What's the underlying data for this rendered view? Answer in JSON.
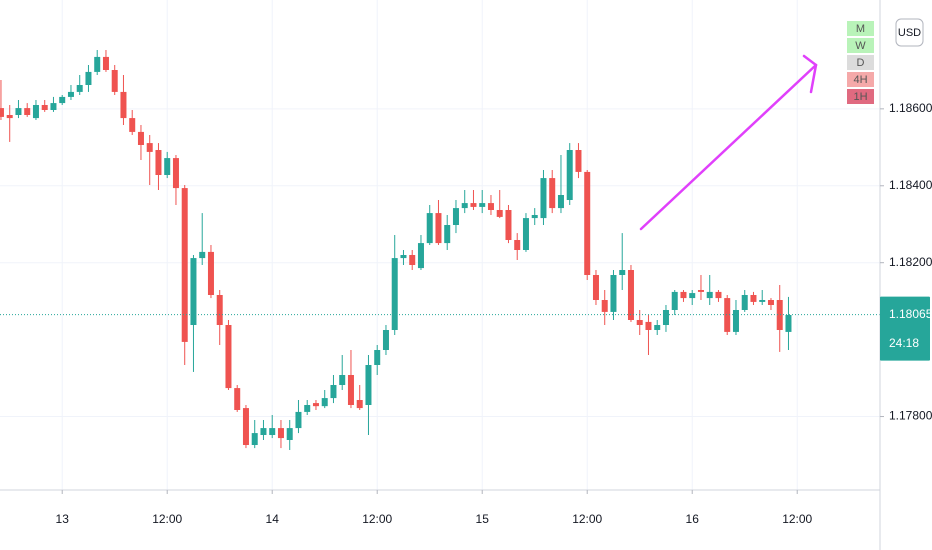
{
  "chart_data": {
    "type": "candlestick",
    "currency": "USD",
    "up_color": "#26a69a",
    "down_color": "#ef5350",
    "grid": true,
    "x": [
      0,
      1,
      2,
      3,
      4,
      5,
      6,
      7,
      8,
      9,
      10,
      11,
      12,
      13,
      14,
      15,
      16,
      17,
      18,
      19,
      20,
      21,
      22,
      23,
      24,
      25,
      26,
      27,
      28,
      29,
      30,
      31,
      32,
      33,
      34,
      35,
      36,
      37,
      38,
      39,
      40,
      41,
      42,
      43,
      44,
      45,
      46,
      47,
      48,
      49,
      50,
      51,
      52,
      53,
      54,
      55,
      56,
      57,
      58,
      59,
      60,
      61,
      62,
      63,
      64,
      65,
      66,
      67,
      68,
      69,
      70,
      71,
      72,
      73,
      74,
      75,
      76,
      77,
      78,
      79,
      80,
      81,
      82,
      83,
      84,
      85,
      86,
      87,
      88,
      89,
      90
    ],
    "open": [
      1.18602,
      1.18584,
      1.18584,
      1.18602,
      1.18576,
      1.1861,
      1.18597,
      1.18615,
      1.18631,
      1.18644,
      1.18662,
      1.18696,
      1.18735,
      1.18701,
      1.18644,
      1.18576,
      1.1854,
      1.18511,
      1.18493,
      1.18428,
      1.18472,
      1.18394,
      1.18038,
      1.18212,
      1.18228,
      1.18116,
      1.18038,
      1.17874,
      1.17822,
      1.17726,
      1.17752,
      1.17752,
      1.1777,
      1.17739,
      1.1777,
      1.17812,
      1.17835,
      1.17827,
      1.17848,
      1.17882,
      1.17908,
      1.17843,
      1.1783,
      1.17934,
      1.17973,
      1.18025,
      1.18212,
      1.1822,
      1.18186,
      1.18251,
      1.18329,
      1.18251,
      1.18298,
      1.18342,
      1.18355,
      1.18345,
      1.18355,
      1.18337,
      1.18337,
      1.18259,
      1.18233,
      1.18316,
      1.18316,
      1.1842,
      1.18342,
      1.18363,
      1.18493,
      1.18436,
      1.18168,
      1.18103,
      1.18072,
      1.18168,
      1.18181,
      1.18051,
      1.18046,
      1.18025,
      1.18038,
      1.18077,
      1.18124,
      1.18108,
      1.18129,
      1.18108,
      1.18124,
      1.18108,
      1.1802,
      1.18077,
      1.18116,
      1.18098,
      1.18103,
      1.18103,
      1.1802
    ],
    "high": [
      1.18675,
      1.1861,
      1.18623,
      1.18615,
      1.18623,
      1.18623,
      1.18631,
      1.18636,
      1.18662,
      1.18688,
      1.18714,
      1.18753,
      1.18753,
      1.18714,
      1.18688,
      1.18597,
      1.18558,
      1.18532,
      1.18511,
      1.18488,
      1.1848,
      1.18402,
      1.1822,
      1.18329,
      1.18246,
      1.18129,
      1.18051,
      1.17882,
      1.1783,
      1.17791,
      1.17791,
      1.17804,
      1.17791,
      1.17791,
      1.17843,
      1.17843,
      1.17843,
      1.17869,
      1.17908,
      1.1796,
      1.17973,
      1.17882,
      1.1796,
      1.17986,
      1.18038,
      1.18272,
      1.18233,
      1.18233,
      1.18272,
      1.1835,
      1.18363,
      1.18324,
      1.18363,
      1.18389,
      1.18389,
      1.18389,
      1.18376,
      1.18389,
      1.1835,
      1.18277,
      1.18329,
      1.18342,
      1.18441,
      1.18441,
      1.1848,
      1.18511,
      1.18511,
      1.18441,
      1.18181,
      1.18129,
      1.18181,
      1.18277,
      1.18194,
      1.18077,
      1.18064,
      1.18051,
      1.1809,
      1.18129,
      1.18129,
      1.18129,
      1.18168,
      1.18168,
      1.18129,
      1.18116,
      1.18103,
      1.18129,
      1.18124,
      1.18129,
      1.18108,
      1.18142,
      1.18111
    ],
    "low": [
      1.18571,
      1.18514,
      1.18576,
      1.18579,
      1.18571,
      1.18592,
      1.18592,
      1.1861,
      1.18623,
      1.18636,
      1.18644,
      1.18688,
      1.18696,
      1.18636,
      1.18558,
      1.18532,
      1.18467,
      1.18402,
      1.18389,
      1.1842,
      1.1835,
      1.17934,
      1.17916,
      1.18194,
      1.18108,
      1.17986,
      1.17869,
      1.17812,
      1.17718,
      1.17718,
      1.17739,
      1.17744,
      1.17718,
      1.17713,
      1.17757,
      1.17804,
      1.17817,
      1.17822,
      1.17835,
      1.17869,
      1.17822,
      1.17817,
      1.17752,
      1.17908,
      1.1796,
      1.18012,
      1.18194,
      1.18181,
      1.18181,
      1.18246,
      1.18246,
      1.18233,
      1.18277,
      1.18329,
      1.18337,
      1.18329,
      1.18324,
      1.18316,
      1.18251,
      1.18207,
      1.18228,
      1.18298,
      1.18298,
      1.18329,
      1.18329,
      1.1835,
      1.1842,
      1.18155,
      1.1809,
      1.18038,
      1.18051,
      1.18129,
      1.18046,
      1.18012,
      1.1796,
      1.18012,
      1.1802,
      1.18064,
      1.18098,
      1.1809,
      1.18103,
      1.1809,
      1.18098,
      1.18012,
      1.18012,
      1.18072,
      1.1809,
      1.1809,
      1.18077,
      1.17968,
      1.17973
    ],
    "close": [
      1.18579,
      1.18576,
      1.18602,
      1.18584,
      1.1861,
      1.18597,
      1.18615,
      1.18631,
      1.18644,
      1.18662,
      1.18696,
      1.18735,
      1.18701,
      1.18644,
      1.18576,
      1.1854,
      1.18506,
      1.18488,
      1.18428,
      1.18472,
      1.18394,
      1.17994,
      1.18212,
      1.18228,
      1.18116,
      1.18038,
      1.17874,
      1.17817,
      1.17726,
      1.17757,
      1.1777,
      1.1777,
      1.17744,
      1.1777,
      1.17812,
      1.1783,
      1.17827,
      1.17848,
      1.17882,
      1.17908,
      1.1783,
      1.17822,
      1.17934,
      1.17973,
      1.18025,
      1.18212,
      1.1822,
      1.18194,
      1.18251,
      1.18329,
      1.18251,
      1.18298,
      1.18342,
      1.18355,
      1.18345,
      1.18355,
      1.18337,
      1.18319,
      1.18259,
      1.18233,
      1.18316,
      1.18324,
      1.1842,
      1.18342,
      1.18376,
      1.18493,
      1.18436,
      1.18168,
      1.18103,
      1.18072,
      1.18168,
      1.18181,
      1.18051,
      1.18038,
      1.18025,
      1.18038,
      1.18077,
      1.18124,
      1.18108,
      1.18121,
      1.18124,
      1.18124,
      1.18108,
      1.1802,
      1.18077,
      1.18116,
      1.18098,
      1.18103,
      1.1809,
      1.18025,
      1.18064
    ],
    "xlim": [
      -0.11,
      100.46
    ],
    "ylim": [
      1.17609,
      1.18883
    ],
    "xticks": [
      {
        "value": 7,
        "label": "13"
      },
      {
        "value": 19,
        "label": "12:00"
      },
      {
        "value": 31,
        "label": "14"
      },
      {
        "value": 43,
        "label": "12:00"
      },
      {
        "value": 55,
        "label": "15"
      },
      {
        "value": 67,
        "label": "12:00"
      },
      {
        "value": 79,
        "label": "16"
      },
      {
        "value": 91,
        "label": "12:00"
      }
    ],
    "yticks": [
      {
        "value": 1.186,
        "label": "1.18600"
      },
      {
        "value": 1.184,
        "label": "1.18400"
      },
      {
        "value": 1.182,
        "label": "1.18200"
      },
      {
        "value": 1.178,
        "label": "1.17800"
      }
    ],
    "last_price": {
      "value": 1.18065,
      "label": "1.18065"
    },
    "countdown": "24:18",
    "timeframes": [
      {
        "label": "M",
        "color": "#b9f3b9"
      },
      {
        "label": "W",
        "color": "#b9f3b9"
      },
      {
        "label": "D",
        "color": "#dcdcdc"
      },
      {
        "label": "4H",
        "color": "#f5a9a9"
      },
      {
        "label": "1H",
        "color": "#e06a80"
      }
    ]
  }
}
